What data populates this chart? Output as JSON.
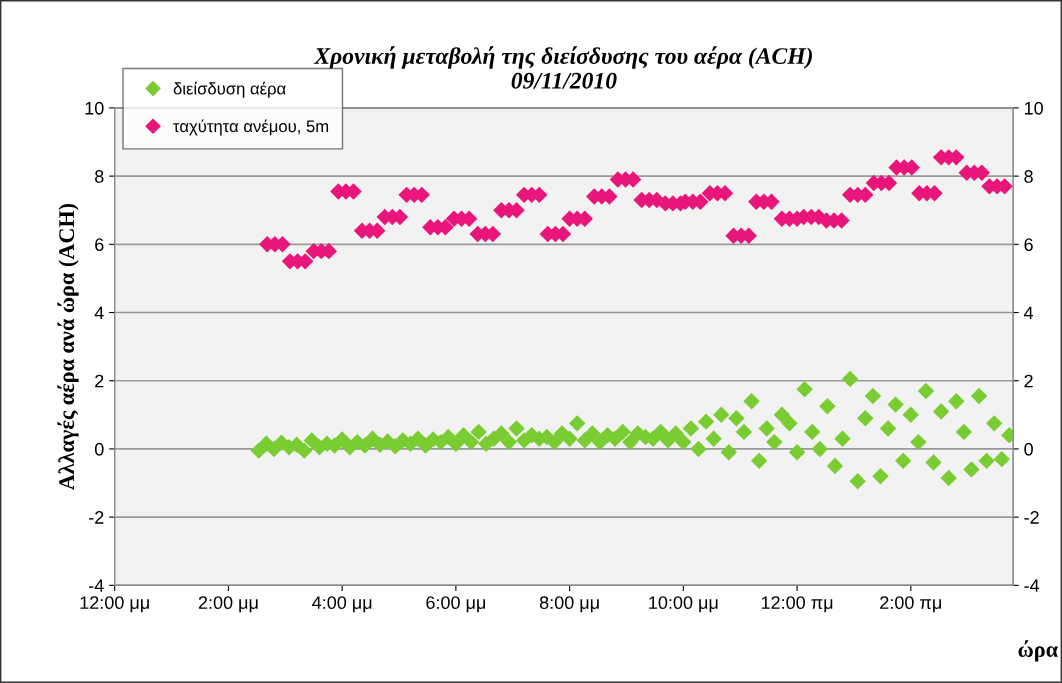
{
  "chart_data": {
    "type": "scatter",
    "title": "Χρονική μεταβολή της διείσδυσης του αέρα (ACH)\n09/11/2010",
    "xlabel": "ώρα",
    "ylabel": "Αλλαγές αέρα ανά ώρα (ACH)",
    "xlim": [
      "2010-11-09T00:00",
      "2010-11-09T15:48"
    ],
    "xticks": [
      {
        "value": "2010-11-09T00:00",
        "label": "12:00 μμ"
      },
      {
        "value": "2010-11-09T02:00",
        "label": "2:00 μμ"
      },
      {
        "value": "2010-11-09T04:00",
        "label": "4:00 μμ"
      },
      {
        "value": "2010-11-09T06:00",
        "label": "6:00 μμ"
      },
      {
        "value": "2010-11-09T08:00",
        "label": "8:00 μμ"
      },
      {
        "value": "2010-11-09T10:00",
        "label": "10:00 μμ"
      },
      {
        "value": "2010-11-09T12:00",
        "label": "12:00 πμ"
      },
      {
        "value": "2010-11-09T14:00",
        "label": "2:00 πμ"
      }
    ],
    "ylim": [
      -4,
      10
    ],
    "yticks": [
      -4,
      -2,
      0,
      2,
      4,
      6,
      8,
      10
    ],
    "y2lim": [
      -4,
      10
    ],
    "y2ticks": [
      -4,
      -2,
      0,
      2,
      4,
      6,
      8,
      10
    ],
    "grid": "y",
    "legend": "top left",
    "marker": "diamond",
    "series": [
      {
        "name": "διείσδυση αέρα",
        "color": "#7acc33",
        "x": [
          "2010-11-09T02:32",
          "2010-11-09T02:40",
          "2010-11-09T02:48",
          "2010-11-09T02:56",
          "2010-11-09T03:04",
          "2010-11-09T03:12",
          "2010-11-09T03:20",
          "2010-11-09T03:28",
          "2010-11-09T03:36",
          "2010-11-09T03:44",
          "2010-11-09T03:52",
          "2010-11-09T04:00",
          "2010-11-09T04:08",
          "2010-11-09T04:16",
          "2010-11-09T04:24",
          "2010-11-09T04:32",
          "2010-11-09T04:40",
          "2010-11-09T04:48",
          "2010-11-09T04:56",
          "2010-11-09T05:04",
          "2010-11-09T05:12",
          "2010-11-09T05:20",
          "2010-11-09T05:28",
          "2010-11-09T05:36",
          "2010-11-09T05:44",
          "2010-11-09T05:52",
          "2010-11-09T06:00",
          "2010-11-09T06:08",
          "2010-11-09T06:16",
          "2010-11-09T06:24",
          "2010-11-09T06:32",
          "2010-11-09T06:40",
          "2010-11-09T06:48",
          "2010-11-09T06:56",
          "2010-11-09T07:04",
          "2010-11-09T07:12",
          "2010-11-09T07:20",
          "2010-11-09T07:28",
          "2010-11-09T07:36",
          "2010-11-09T07:44",
          "2010-11-09T07:52",
          "2010-11-09T08:00",
          "2010-11-09T08:08",
          "2010-11-09T08:16",
          "2010-11-09T08:24",
          "2010-11-09T08:32",
          "2010-11-09T08:40",
          "2010-11-09T08:48",
          "2010-11-09T08:56",
          "2010-11-09T09:04",
          "2010-11-09T09:12",
          "2010-11-09T09:20",
          "2010-11-09T09:28",
          "2010-11-09T09:36",
          "2010-11-09T09:44",
          "2010-11-09T09:52",
          "2010-11-09T10:00",
          "2010-11-09T10:08",
          "2010-11-09T10:16",
          "2010-11-09T10:24",
          "2010-11-09T10:32",
          "2010-11-09T10:40",
          "2010-11-09T10:48",
          "2010-11-09T10:56",
          "2010-11-09T11:04",
          "2010-11-09T11:12",
          "2010-11-09T11:20",
          "2010-11-09T11:28",
          "2010-11-09T11:36",
          "2010-11-09T11:44",
          "2010-11-09T11:52",
          "2010-11-09T12:00",
          "2010-11-09T12:08",
          "2010-11-09T12:16",
          "2010-11-09T12:24",
          "2010-11-09T12:32",
          "2010-11-09T12:40",
          "2010-11-09T12:48",
          "2010-11-09T12:56",
          "2010-11-09T13:04",
          "2010-11-09T13:12",
          "2010-11-09T13:20",
          "2010-11-09T13:28",
          "2010-11-09T13:36",
          "2010-11-09T13:44",
          "2010-11-09T13:52",
          "2010-11-09T14:00",
          "2010-11-09T14:08",
          "2010-11-09T14:16",
          "2010-11-09T14:24",
          "2010-11-09T14:32",
          "2010-11-09T14:40",
          "2010-11-09T14:48",
          "2010-11-09T14:56",
          "2010-11-09T15:04",
          "2010-11-09T15:12",
          "2010-11-09T15:20",
          "2010-11-09T15:28",
          "2010-11-09T15:36",
          "2010-11-09T15:44"
        ],
        "values": [
          -0.05,
          0.15,
          0.0,
          0.18,
          0.05,
          0.12,
          -0.05,
          0.25,
          0.05,
          0.15,
          0.1,
          0.28,
          0.05,
          0.2,
          0.1,
          0.3,
          0.12,
          0.22,
          0.08,
          0.25,
          0.15,
          0.3,
          0.1,
          0.28,
          0.2,
          0.35,
          0.15,
          0.4,
          0.2,
          0.5,
          0.15,
          0.3,
          0.45,
          0.2,
          0.6,
          0.25,
          0.4,
          0.3,
          0.35,
          0.2,
          0.45,
          0.3,
          0.75,
          0.25,
          0.45,
          0.2,
          0.4,
          0.3,
          0.5,
          0.2,
          0.45,
          0.35,
          0.3,
          0.5,
          0.25,
          0.45,
          0.2,
          0.6,
          0.0,
          0.8,
          0.3,
          1.0,
          -0.1,
          0.9,
          0.5,
          1.4,
          -0.35,
          0.6,
          0.2,
          1.0,
          0.75,
          -0.1,
          1.75,
          0.5,
          0.0,
          1.25,
          -0.5,
          0.3,
          2.05,
          -0.95,
          0.9,
          1.55,
          -0.8,
          0.6,
          1.3,
          -0.35,
          1.0,
          0.2,
          1.7,
          -0.4,
          1.1,
          -0.85,
          1.4,
          0.5,
          -0.6,
          1.55,
          -0.35,
          0.75,
          -0.3,
          0.4
        ]
      },
      {
        "name": "ταχύτητα ανέμου, 5m",
        "color": "#e8157a",
        "x": [
          "2010-11-09T02:41",
          "2010-11-09T02:49",
          "2010-11-09T02:57",
          "2010-11-09T03:05",
          "2010-11-09T03:13",
          "2010-11-09T03:21",
          "2010-11-09T03:30",
          "2010-11-09T03:38",
          "2010-11-09T03:46",
          "2010-11-09T03:56",
          "2010-11-09T04:04",
          "2010-11-09T04:12",
          "2010-11-09T04:21",
          "2010-11-09T04:29",
          "2010-11-09T04:37",
          "2010-11-09T04:45",
          "2010-11-09T04:53",
          "2010-11-09T05:01",
          "2010-11-09T05:08",
          "2010-11-09T05:16",
          "2010-11-09T05:24",
          "2010-11-09T05:33",
          "2010-11-09T05:41",
          "2010-11-09T05:49",
          "2010-11-09T05:58",
          "2010-11-09T06:06",
          "2010-11-09T06:14",
          "2010-11-09T06:23",
          "2010-11-09T06:31",
          "2010-11-09T06:39",
          "2010-11-09T06:48",
          "2010-11-09T06:56",
          "2010-11-09T07:04",
          "2010-11-09T07:12",
          "2010-11-09T07:20",
          "2010-11-09T07:28",
          "2010-11-09T07:37",
          "2010-11-09T07:45",
          "2010-11-09T07:53",
          "2010-11-09T08:00",
          "2010-11-09T08:08",
          "2010-11-09T08:16",
          "2010-11-09T08:26",
          "2010-11-09T08:34",
          "2010-11-09T08:42",
          "2010-11-09T08:51",
          "2010-11-09T08:59",
          "2010-11-09T09:07",
          "2010-11-09T09:16",
          "2010-11-09T09:24",
          "2010-11-09T09:32",
          "2010-11-09T09:41",
          "2010-11-09T09:49",
          "2010-11-09T09:57",
          "2010-11-09T10:02",
          "2010-11-09T10:10",
          "2010-11-09T10:18",
          "2010-11-09T10:28",
          "2010-11-09T10:36",
          "2010-11-09T10:44",
          "2010-11-09T10:53",
          "2010-11-09T11:01",
          "2010-11-09T11:09",
          "2010-11-09T11:17",
          "2010-11-09T11:25",
          "2010-11-09T11:33",
          "2010-11-09T11:44",
          "2010-11-09T11:52",
          "2010-11-09T12:00",
          "2010-11-09T12:07",
          "2010-11-09T12:15",
          "2010-11-09T12:23",
          "2010-11-09T12:31",
          "2010-11-09T12:39",
          "2010-11-09T12:47",
          "2010-11-09T12:56",
          "2010-11-09T13:04",
          "2010-11-09T13:12",
          "2010-11-09T13:21",
          "2010-11-09T13:29",
          "2010-11-09T13:37",
          "2010-11-09T13:45",
          "2010-11-09T13:53",
          "2010-11-09T14:01",
          "2010-11-09T14:09",
          "2010-11-09T14:17",
          "2010-11-09T14:25",
          "2010-11-09T14:32",
          "2010-11-09T14:40",
          "2010-11-09T14:48",
          "2010-11-09T14:59",
          "2010-11-09T15:07",
          "2010-11-09T15:15",
          "2010-11-09T15:23",
          "2010-11-09T15:31",
          "2010-11-09T15:39"
        ],
        "values": [
          6.0,
          6.0,
          6.0,
          5.5,
          5.5,
          5.5,
          5.8,
          5.8,
          5.8,
          7.55,
          7.55,
          7.55,
          6.4,
          6.4,
          6.4,
          6.8,
          6.8,
          6.8,
          7.45,
          7.45,
          7.45,
          6.5,
          6.5,
          6.5,
          6.75,
          6.75,
          6.75,
          6.3,
          6.3,
          6.3,
          7.0,
          7.0,
          7.0,
          7.45,
          7.45,
          7.45,
          6.3,
          6.3,
          6.3,
          6.75,
          6.75,
          6.75,
          7.4,
          7.4,
          7.4,
          7.9,
          7.9,
          7.9,
          7.3,
          7.3,
          7.3,
          7.2,
          7.2,
          7.2,
          7.25,
          7.25,
          7.25,
          7.5,
          7.5,
          7.5,
          6.25,
          6.25,
          6.25,
          7.25,
          7.25,
          7.25,
          6.75,
          6.75,
          6.75,
          6.8,
          6.8,
          6.8,
          6.7,
          6.7,
          6.7,
          7.45,
          7.45,
          7.45,
          7.8,
          7.8,
          7.8,
          8.25,
          8.25,
          8.25,
          7.5,
          7.5,
          7.5,
          8.55,
          8.55,
          8.55,
          8.1,
          8.1,
          8.1,
          7.7,
          7.7,
          7.7
        ]
      }
    ]
  }
}
